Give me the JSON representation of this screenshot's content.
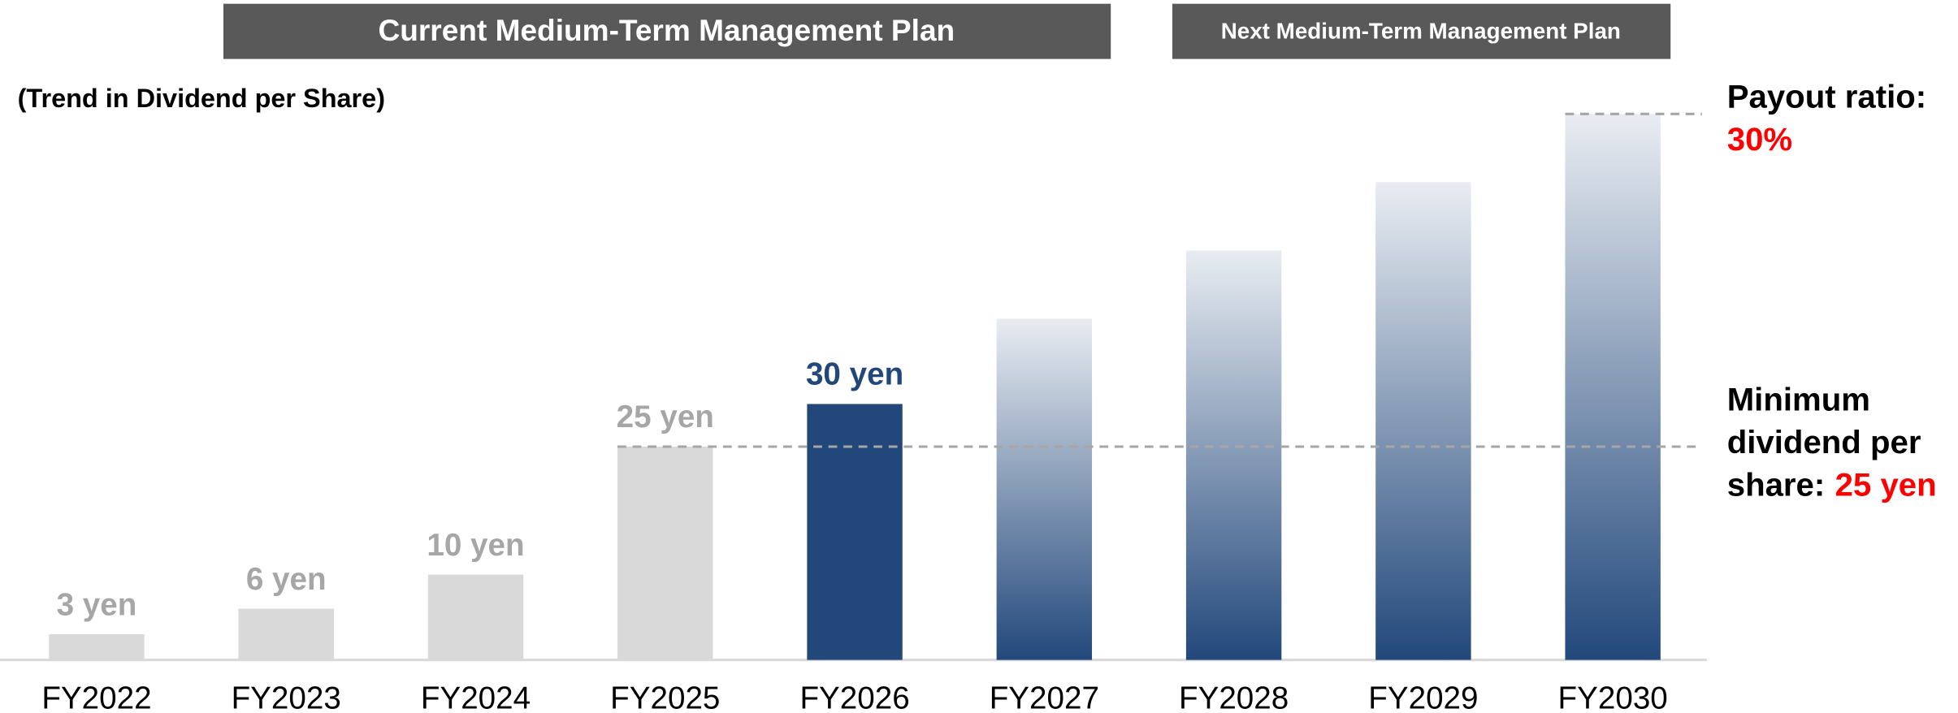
{
  "chart_data": {
    "type": "bar",
    "headers": [
      "Current Medium-Term Management Plan",
      "Next Medium-Term Management Plan"
    ],
    "subtitle": "(Trend in Dividend per Share)",
    "categories": [
      "FY2022",
      "FY2023",
      "FY2024",
      "FY2025",
      "FY2026",
      "FY2027",
      "FY2028",
      "FY2029",
      "FY2030"
    ],
    "values": [
      3,
      6,
      10,
      25,
      30,
      40,
      48,
      56,
      64
    ],
    "value_labels": [
      "3 yen",
      "6 yen",
      "10 yen",
      "25 yen",
      "30 yen",
      null,
      null,
      null,
      null
    ],
    "colors": [
      "#d9d9d9",
      "#d9d9d9",
      "#d9d9d9",
      "#d9d9d9",
      "#22487b",
      "#22487b",
      "#22487b",
      "#22487b",
      "#22487b"
    ],
    "gradient": [
      false,
      false,
      false,
      false,
      false,
      true,
      true,
      true,
      true
    ],
    "label_colors": [
      "#a6a6a6",
      "#a6a6a6",
      "#a6a6a6",
      "#a6a6a6",
      "#22487b",
      null,
      null,
      null,
      null
    ],
    "ylim": [
      0,
      80
    ],
    "reference_lines": [
      {
        "value": 64,
        "start_category": "FY2030",
        "label": "Payout ratio:",
        "highlight": "30%"
      },
      {
        "value": 25,
        "start_category": "FY2025",
        "label": [
          "Minimum",
          "dividend per",
          "share:"
        ],
        "highlight": "25 yen"
      }
    ],
    "highlight_color": "#ff0000"
  }
}
